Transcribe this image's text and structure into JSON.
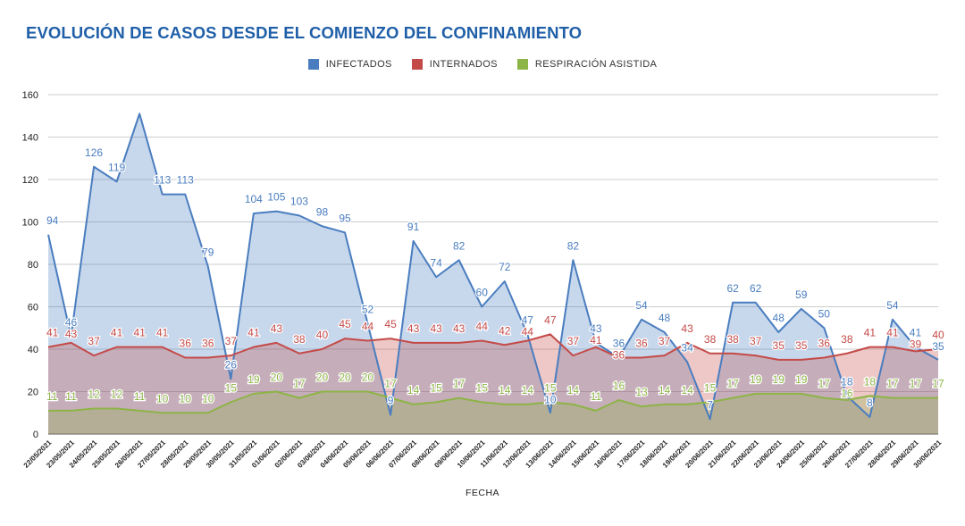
{
  "chart_data": {
    "type": "area",
    "title": "EVOLUCIÓN DE CASOS DESDE EL COMIENZO DEL CONFINAMIENTO",
    "xlabel": "FECHA",
    "ylabel": "",
    "ylim": [
      0,
      160
    ],
    "yticks": [
      0,
      20,
      40,
      60,
      80,
      100,
      120,
      140,
      160
    ],
    "grid": true,
    "legend_position": "top",
    "categories": [
      "22/05/2021",
      "23/05/2021",
      "24/05/2021",
      "25/05/2021",
      "26/05/2021",
      "27/05/2021",
      "28/05/2021",
      "29/05/2021",
      "30/05/2021",
      "31/05/2021",
      "01/06/2021",
      "02/06/2021",
      "03/06/2021",
      "04/06/2021",
      "05/06/2021",
      "06/06/2021",
      "07/06/2021",
      "08/06/2021",
      "09/06/2021",
      "10/06/2021",
      "11/06/2021",
      "12/06/2021",
      "13/06/2021",
      "14/06/2021",
      "15/06/2021",
      "16/06/2021",
      "17/06/2021",
      "18/06/2021",
      "19/06/2021",
      "20/06/2021",
      "21/06/2021",
      "22/06/2021",
      "23/06/2021",
      "24/06/2021",
      "25/06/2021",
      "26/06/2021",
      "27/06/2021",
      "28/06/2021",
      "29/06/2021",
      "30/06/2021"
    ],
    "series": [
      {
        "name": "INFECTADOS",
        "color": "#4a7dbf",
        "fill": "rgba(74,125,191,0.3)",
        "values": [
          94,
          46,
          126,
          119,
          151,
          113,
          113,
          79,
          26,
          104,
          105,
          103,
          98,
          95,
          52,
          9,
          91,
          74,
          82,
          60,
          72,
          47,
          10,
          82,
          43,
          36,
          54,
          48,
          34,
          7,
          62,
          62,
          48,
          59,
          50,
          18,
          8,
          54,
          41,
          35
        ]
      },
      {
        "name": "INTERNADOS",
        "color": "#c44a47",
        "fill": "rgba(196,74,71,0.3)",
        "values": [
          41,
          43,
          37,
          41,
          41,
          41,
          36,
          36,
          37,
          41,
          43,
          38,
          40,
          45,
          44,
          45,
          43,
          43,
          43,
          44,
          42,
          44,
          47,
          37,
          41,
          36,
          36,
          37,
          43,
          38,
          38,
          37,
          35,
          35,
          36,
          38,
          41,
          41,
          39,
          40
        ]
      },
      {
        "name": "RESPIRACIÓN ASISTIDA",
        "color": "#8db446",
        "fill": "rgba(141,180,70,0.3)",
        "values": [
          11,
          11,
          12,
          12,
          11,
          10,
          10,
          10,
          15,
          19,
          20,
          17,
          20,
          20,
          20,
          17,
          14,
          15,
          17,
          15,
          14,
          14,
          15,
          14,
          11,
          16,
          13,
          14,
          14,
          15,
          17,
          19,
          19,
          19,
          17,
          16,
          18,
          17,
          17,
          17
        ]
      }
    ]
  }
}
